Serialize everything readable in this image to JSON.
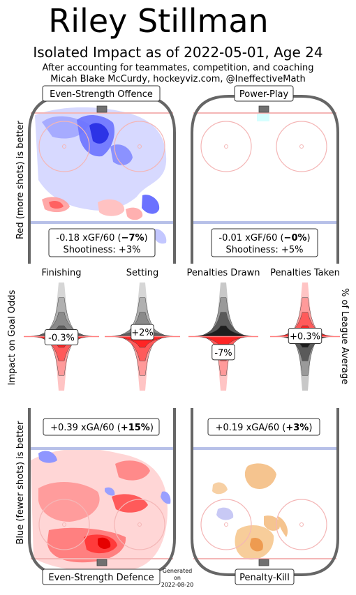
{
  "header": {
    "player_name": "Riley Stillman",
    "subtitle": "Isolated Impact as of 2022-05-01, Age 24",
    "line1": "After accounting for teammates, competition, and coaching",
    "line2": "Micah Blake McCurdy, hockeyviz.com, @IneffectiveMath"
  },
  "side_labels": {
    "top_left": "Red (more shots) is better",
    "middle_left": "Impact on Goal Odds",
    "middle_right": "% of League Average",
    "bottom_left": "Blue (fewer shots) is better"
  },
  "panels": {
    "es_offence": {
      "title": "Even-Strength Offence",
      "xg_line": "-0.18 xGF/60 (",
      "xg_pct": "−7%",
      "xg_close": ")",
      "shootiness": "Shootiness: +3%"
    },
    "pp": {
      "title": "Power-Play",
      "xg_line": "-0.01 xGF/60 (",
      "xg_pct": "−0%",
      "xg_close": ")",
      "shootiness": "Shootiness: +5%"
    },
    "es_defence": {
      "title": "Even-Strength Defence",
      "xg_line": "+0.39 xGA/60 (",
      "xg_pct": "+15%",
      "xg_close": ")"
    },
    "pk": {
      "title": "Penalty-Kill",
      "xg_line": "+0.19 xGA/60 (",
      "xg_pct": "+3%",
      "xg_close": ")"
    }
  },
  "footer": {
    "generated_l1": "Generated",
    "generated_l2": "on",
    "generated_l3": "2022-08-20"
  },
  "colors": {
    "rink_border": "#666666",
    "red_line": "#f4b6b6",
    "blue_line": "#b7c0e8",
    "positive": "#ff3333",
    "negative": "#222222",
    "neutral": "#c8c8c8",
    "pk_fill": "#f5c48f"
  },
  "chart_data": {
    "type": "violin",
    "categories": [
      "Finishing",
      "Setting",
      "Penalties Drawn",
      "Penalties Taken"
    ],
    "values_pct": [
      -0.3,
      2,
      -7,
      0.3
    ],
    "value_labels": [
      "-0.3%",
      "+2%",
      "-7%",
      "+0.3%"
    ]
  }
}
